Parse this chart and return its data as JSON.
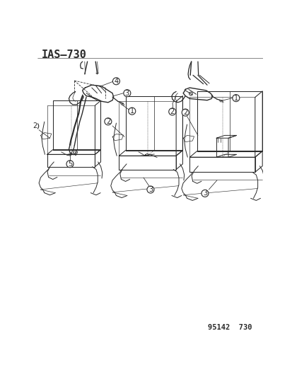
{
  "title": "IAS–730",
  "footer": "95142  730",
  "bg_color": "#ffffff",
  "line_color": "#2a2a2a",
  "title_fontsize": 11,
  "footer_fontsize": 7.5,
  "fig_width": 4.14,
  "fig_height": 5.33,
  "dpi": 100
}
